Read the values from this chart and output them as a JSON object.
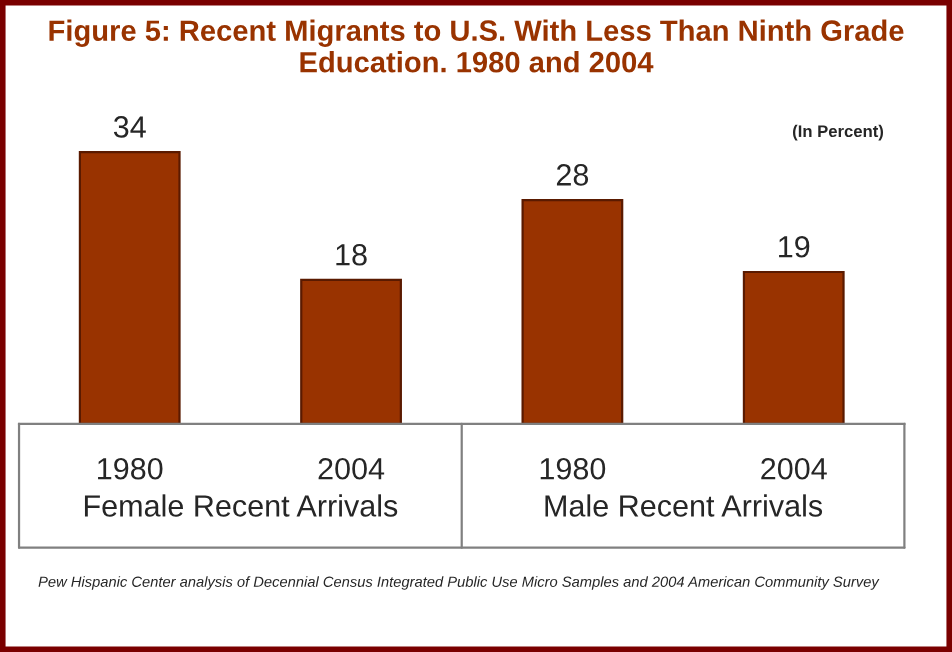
{
  "chart_data": {
    "type": "bar",
    "title": "Figure 5: Recent Migrants to U.S. With Less Than Ninth Grade\nEducation. 1980 and 2004",
    "categories": [
      "1980",
      "2004",
      "1980",
      "2004"
    ],
    "values": [
      34,
      18,
      28,
      19
    ],
    "color": "#993300",
    "data_labels": true,
    "grid": false,
    "legend": false,
    "annotations": [
      "Female Recent Arrivals",
      "Male Recent Arrivals",
      "(In Percent)",
      "Pew Hispanic Center analysis of Decennial Census Integrated Public Use Micro Samples and 2004 American Community Survey"
    ]
  }
}
